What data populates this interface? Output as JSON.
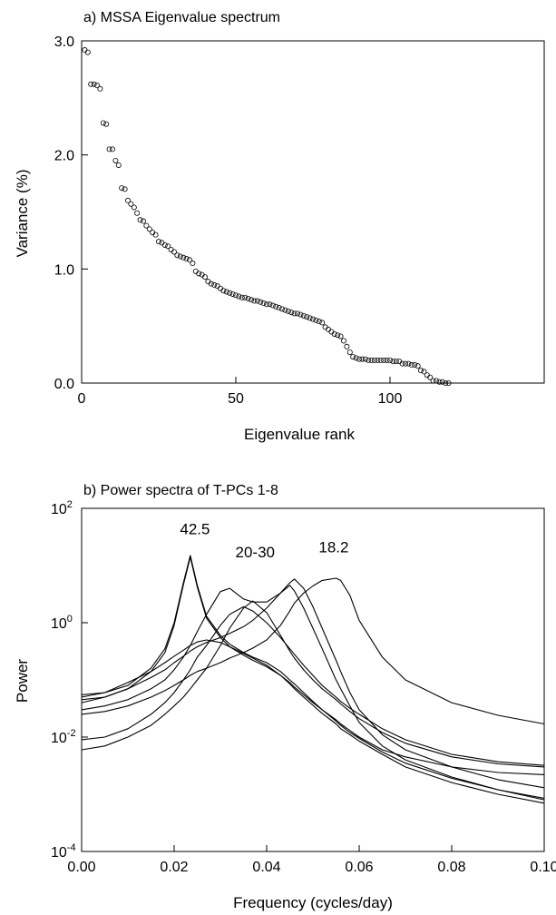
{
  "chart_data": [
    {
      "type": "scatter",
      "title": "a) MSSA Eigenvalue spectrum",
      "xlabel": "Eigenvalue rank",
      "ylabel": "Variance (%)",
      "xlim": [
        0,
        150
      ],
      "ylim": [
        0,
        3.0
      ],
      "xticks": [
        "0",
        "50",
        "100"
      ],
      "yticks": [
        "0.0",
        "1.0",
        "2.0",
        "3.0"
      ],
      "grid": false,
      "marker": "open-circle",
      "x": [
        1,
        2,
        3,
        4,
        5,
        6,
        7,
        8,
        9,
        10,
        11,
        12,
        13,
        14,
        15,
        16,
        17,
        18,
        19,
        20,
        21,
        22,
        23,
        24,
        25,
        26,
        27,
        28,
        29,
        30,
        31,
        32,
        33,
        34,
        35,
        36,
        37,
        38,
        39,
        40,
        41,
        42,
        43,
        44,
        45,
        46,
        47,
        48,
        49,
        50,
        51,
        52,
        53,
        54,
        55,
        56,
        57,
        58,
        59,
        60,
        61,
        62,
        63,
        64,
        65,
        66,
        67,
        68,
        69,
        70,
        71,
        72,
        73,
        74,
        75,
        76,
        77,
        78,
        79,
        80,
        81,
        82,
        83,
        84,
        85,
        86,
        87,
        88,
        89,
        90,
        91,
        92,
        93,
        94,
        95,
        96,
        97,
        98,
        99,
        100,
        101,
        102,
        103,
        104,
        105,
        106,
        107,
        108,
        109,
        110,
        111,
        112,
        113,
        114,
        115,
        116,
        117,
        118,
        119
      ],
      "y": [
        2.92,
        2.9,
        2.62,
        2.62,
        2.61,
        2.58,
        2.28,
        2.27,
        2.05,
        2.05,
        1.95,
        1.91,
        1.71,
        1.7,
        1.6,
        1.57,
        1.54,
        1.49,
        1.43,
        1.42,
        1.38,
        1.35,
        1.32,
        1.3,
        1.24,
        1.23,
        1.21,
        1.2,
        1.17,
        1.15,
        1.12,
        1.11,
        1.1,
        1.09,
        1.08,
        1.05,
        0.98,
        0.96,
        0.95,
        0.93,
        0.89,
        0.87,
        0.86,
        0.85,
        0.83,
        0.81,
        0.8,
        0.79,
        0.78,
        0.77,
        0.76,
        0.75,
        0.75,
        0.74,
        0.73,
        0.72,
        0.72,
        0.71,
        0.7,
        0.69,
        0.69,
        0.68,
        0.67,
        0.66,
        0.65,
        0.64,
        0.63,
        0.62,
        0.61,
        0.61,
        0.6,
        0.59,
        0.58,
        0.57,
        0.56,
        0.55,
        0.54,
        0.53,
        0.49,
        0.47,
        0.45,
        0.43,
        0.42,
        0.41,
        0.37,
        0.32,
        0.27,
        0.23,
        0.22,
        0.21,
        0.21,
        0.21,
        0.2,
        0.2,
        0.2,
        0.2,
        0.2,
        0.2,
        0.2,
        0.2,
        0.19,
        0.19,
        0.19,
        0.17,
        0.17,
        0.17,
        0.16,
        0.16,
        0.15,
        0.11,
        0.1,
        0.07,
        0.05,
        0.02,
        0.02,
        0.01,
        0.01,
        0.0,
        0.0
      ]
    },
    {
      "type": "line",
      "title": "b) Power spectra of T-PCs 1-8",
      "xlabel": "Frequency (cycles/day)",
      "ylabel": "Power",
      "xlim": [
        0,
        0.1
      ],
      "ylim": [
        0.0001,
        100
      ],
      "yscale": "log",
      "xticks": [
        "0.00",
        "0.02",
        "0.04",
        "0.06",
        "0.08",
        "0.10"
      ],
      "yticks": [
        {
          "base": "10",
          "exp": "2"
        },
        {
          "base": "10",
          "exp": "0"
        },
        {
          "base": "10",
          "exp": "-2"
        },
        {
          "base": "10",
          "exp": "-4"
        }
      ],
      "grid": false,
      "annotations": [
        {
          "text": "42.5",
          "x": 0.0245,
          "y": 35
        },
        {
          "text": "20-30",
          "x": 0.0375,
          "y": 14
        },
        {
          "text": "18.2",
          "x": 0.0545,
          "y": 17
        }
      ],
      "x": [
        0,
        0.005,
        0.01,
        0.015,
        0.018,
        0.02,
        0.022,
        0.0235,
        0.025,
        0.027,
        0.03,
        0.032,
        0.035,
        0.037,
        0.04,
        0.043,
        0.045,
        0.046,
        0.048,
        0.05,
        0.052,
        0.055,
        0.056,
        0.058,
        0.06,
        0.065,
        0.07,
        0.08,
        0.09,
        0.1
      ],
      "series": [
        {
          "values": [
            0.055,
            0.06,
            0.08,
            0.16,
            0.35,
            1.0,
            5.0,
            15.0,
            4.5,
            1.3,
            0.6,
            0.42,
            0.3,
            0.25,
            0.2,
            0.14,
            0.1,
            0.085,
            0.06,
            0.042,
            0.03,
            0.019,
            0.016,
            0.012,
            0.0095,
            0.0055,
            0.0035,
            0.0019,
            0.0012,
            0.00085
          ]
        },
        {
          "values": [
            0.045,
            0.05,
            0.07,
            0.14,
            0.3,
            0.9,
            4.6,
            14.0,
            4.2,
            1.2,
            0.55,
            0.38,
            0.27,
            0.22,
            0.17,
            0.12,
            0.085,
            0.07,
            0.05,
            0.036,
            0.026,
            0.017,
            0.014,
            0.011,
            0.0085,
            0.005,
            0.003,
            0.0016,
            0.001,
            0.0007
          ]
        },
        {
          "values": [
            0.04,
            0.05,
            0.07,
            0.11,
            0.15,
            0.2,
            0.26,
            0.32,
            0.38,
            0.45,
            0.55,
            0.65,
            0.85,
            1.1,
            1.8,
            3.3,
            5.0,
            5.8,
            4.0,
            1.9,
            0.8,
            0.22,
            0.14,
            0.06,
            0.03,
            0.011,
            0.006,
            0.003,
            0.0018,
            0.0013
          ]
        },
        {
          "values": [
            0.03,
            0.035,
            0.045,
            0.07,
            0.1,
            0.15,
            0.25,
            0.4,
            0.7,
            1.4,
            3.5,
            4.0,
            2.6,
            2.3,
            2.3,
            3.3,
            4.5,
            3.6,
            1.8,
            0.8,
            0.35,
            0.1,
            0.07,
            0.035,
            0.018,
            0.007,
            0.004,
            0.002,
            0.0012,
            0.0008
          ]
        },
        {
          "values": [
            0.05,
            0.06,
            0.09,
            0.14,
            0.2,
            0.26,
            0.33,
            0.4,
            0.46,
            0.5,
            0.45,
            0.38,
            0.29,
            0.24,
            0.18,
            0.12,
            0.09,
            0.075,
            0.055,
            0.04,
            0.03,
            0.02,
            0.017,
            0.013,
            0.01,
            0.006,
            0.0045,
            0.003,
            0.0024,
            0.0022
          ]
        },
        {
          "values": [
            0.025,
            0.028,
            0.035,
            0.05,
            0.065,
            0.08,
            0.1,
            0.12,
            0.14,
            0.16,
            0.2,
            0.24,
            0.3,
            0.36,
            0.5,
            0.9,
            1.6,
            2.2,
            3.3,
            4.4,
            5.5,
            6.0,
            5.5,
            3.0,
            1.1,
            0.25,
            0.1,
            0.04,
            0.024,
            0.017
          ]
        },
        {
          "values": [
            0.009,
            0.01,
            0.014,
            0.025,
            0.04,
            0.06,
            0.1,
            0.15,
            0.25,
            0.4,
            0.9,
            1.4,
            1.9,
            1.6,
            1.0,
            0.55,
            0.35,
            0.28,
            0.18,
            0.12,
            0.08,
            0.05,
            0.042,
            0.032,
            0.025,
            0.014,
            0.009,
            0.005,
            0.0037,
            0.0032
          ]
        },
        {
          "values": [
            0.006,
            0.007,
            0.01,
            0.016,
            0.025,
            0.035,
            0.05,
            0.07,
            0.1,
            0.16,
            0.4,
            0.8,
            1.8,
            2.4,
            1.5,
            0.6,
            0.32,
            0.24,
            0.15,
            0.1,
            0.07,
            0.045,
            0.038,
            0.028,
            0.021,
            0.012,
            0.0078,
            0.0045,
            0.0034,
            0.003
          ]
        }
      ]
    }
  ]
}
